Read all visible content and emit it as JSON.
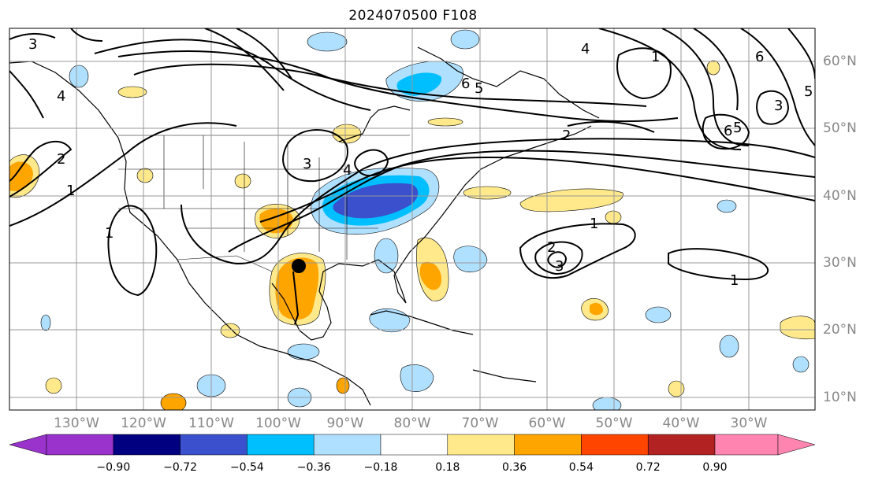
{
  "title": "2024070500 F108",
  "map": {
    "lon_labels": [
      "130°W",
      "120°W",
      "110°W",
      "100°W",
      "90°W",
      "80°W",
      "70°W",
      "60°W",
      "50°W",
      "40°W",
      "30°W"
    ],
    "lat_labels": [
      "60°N",
      "50°N",
      "40°N",
      "30°N",
      "20°N",
      "10°N"
    ],
    "contour_labels": [
      "1",
      "1",
      "1",
      "1",
      "1",
      "2",
      "2",
      "2",
      "3",
      "3",
      "3",
      "3",
      "4",
      "4",
      "4",
      "5",
      "5",
      "5",
      "6",
      "6",
      "6"
    ],
    "marker": "storm-center-dot"
  },
  "colorbar": {
    "ticks": [
      "−0.90",
      "−0.72",
      "−0.54",
      "−0.36",
      "−0.18",
      "0.18",
      "0.36",
      "0.54",
      "0.72",
      "0.90"
    ],
    "colors": [
      "#9933cc",
      "#000080",
      "#3a50cc",
      "#00bfff",
      "#b0e0ff",
      "#ffffff",
      "#ffe98a",
      "#ffa500",
      "#ff4500",
      "#b22222",
      "#ff85b0"
    ]
  }
}
